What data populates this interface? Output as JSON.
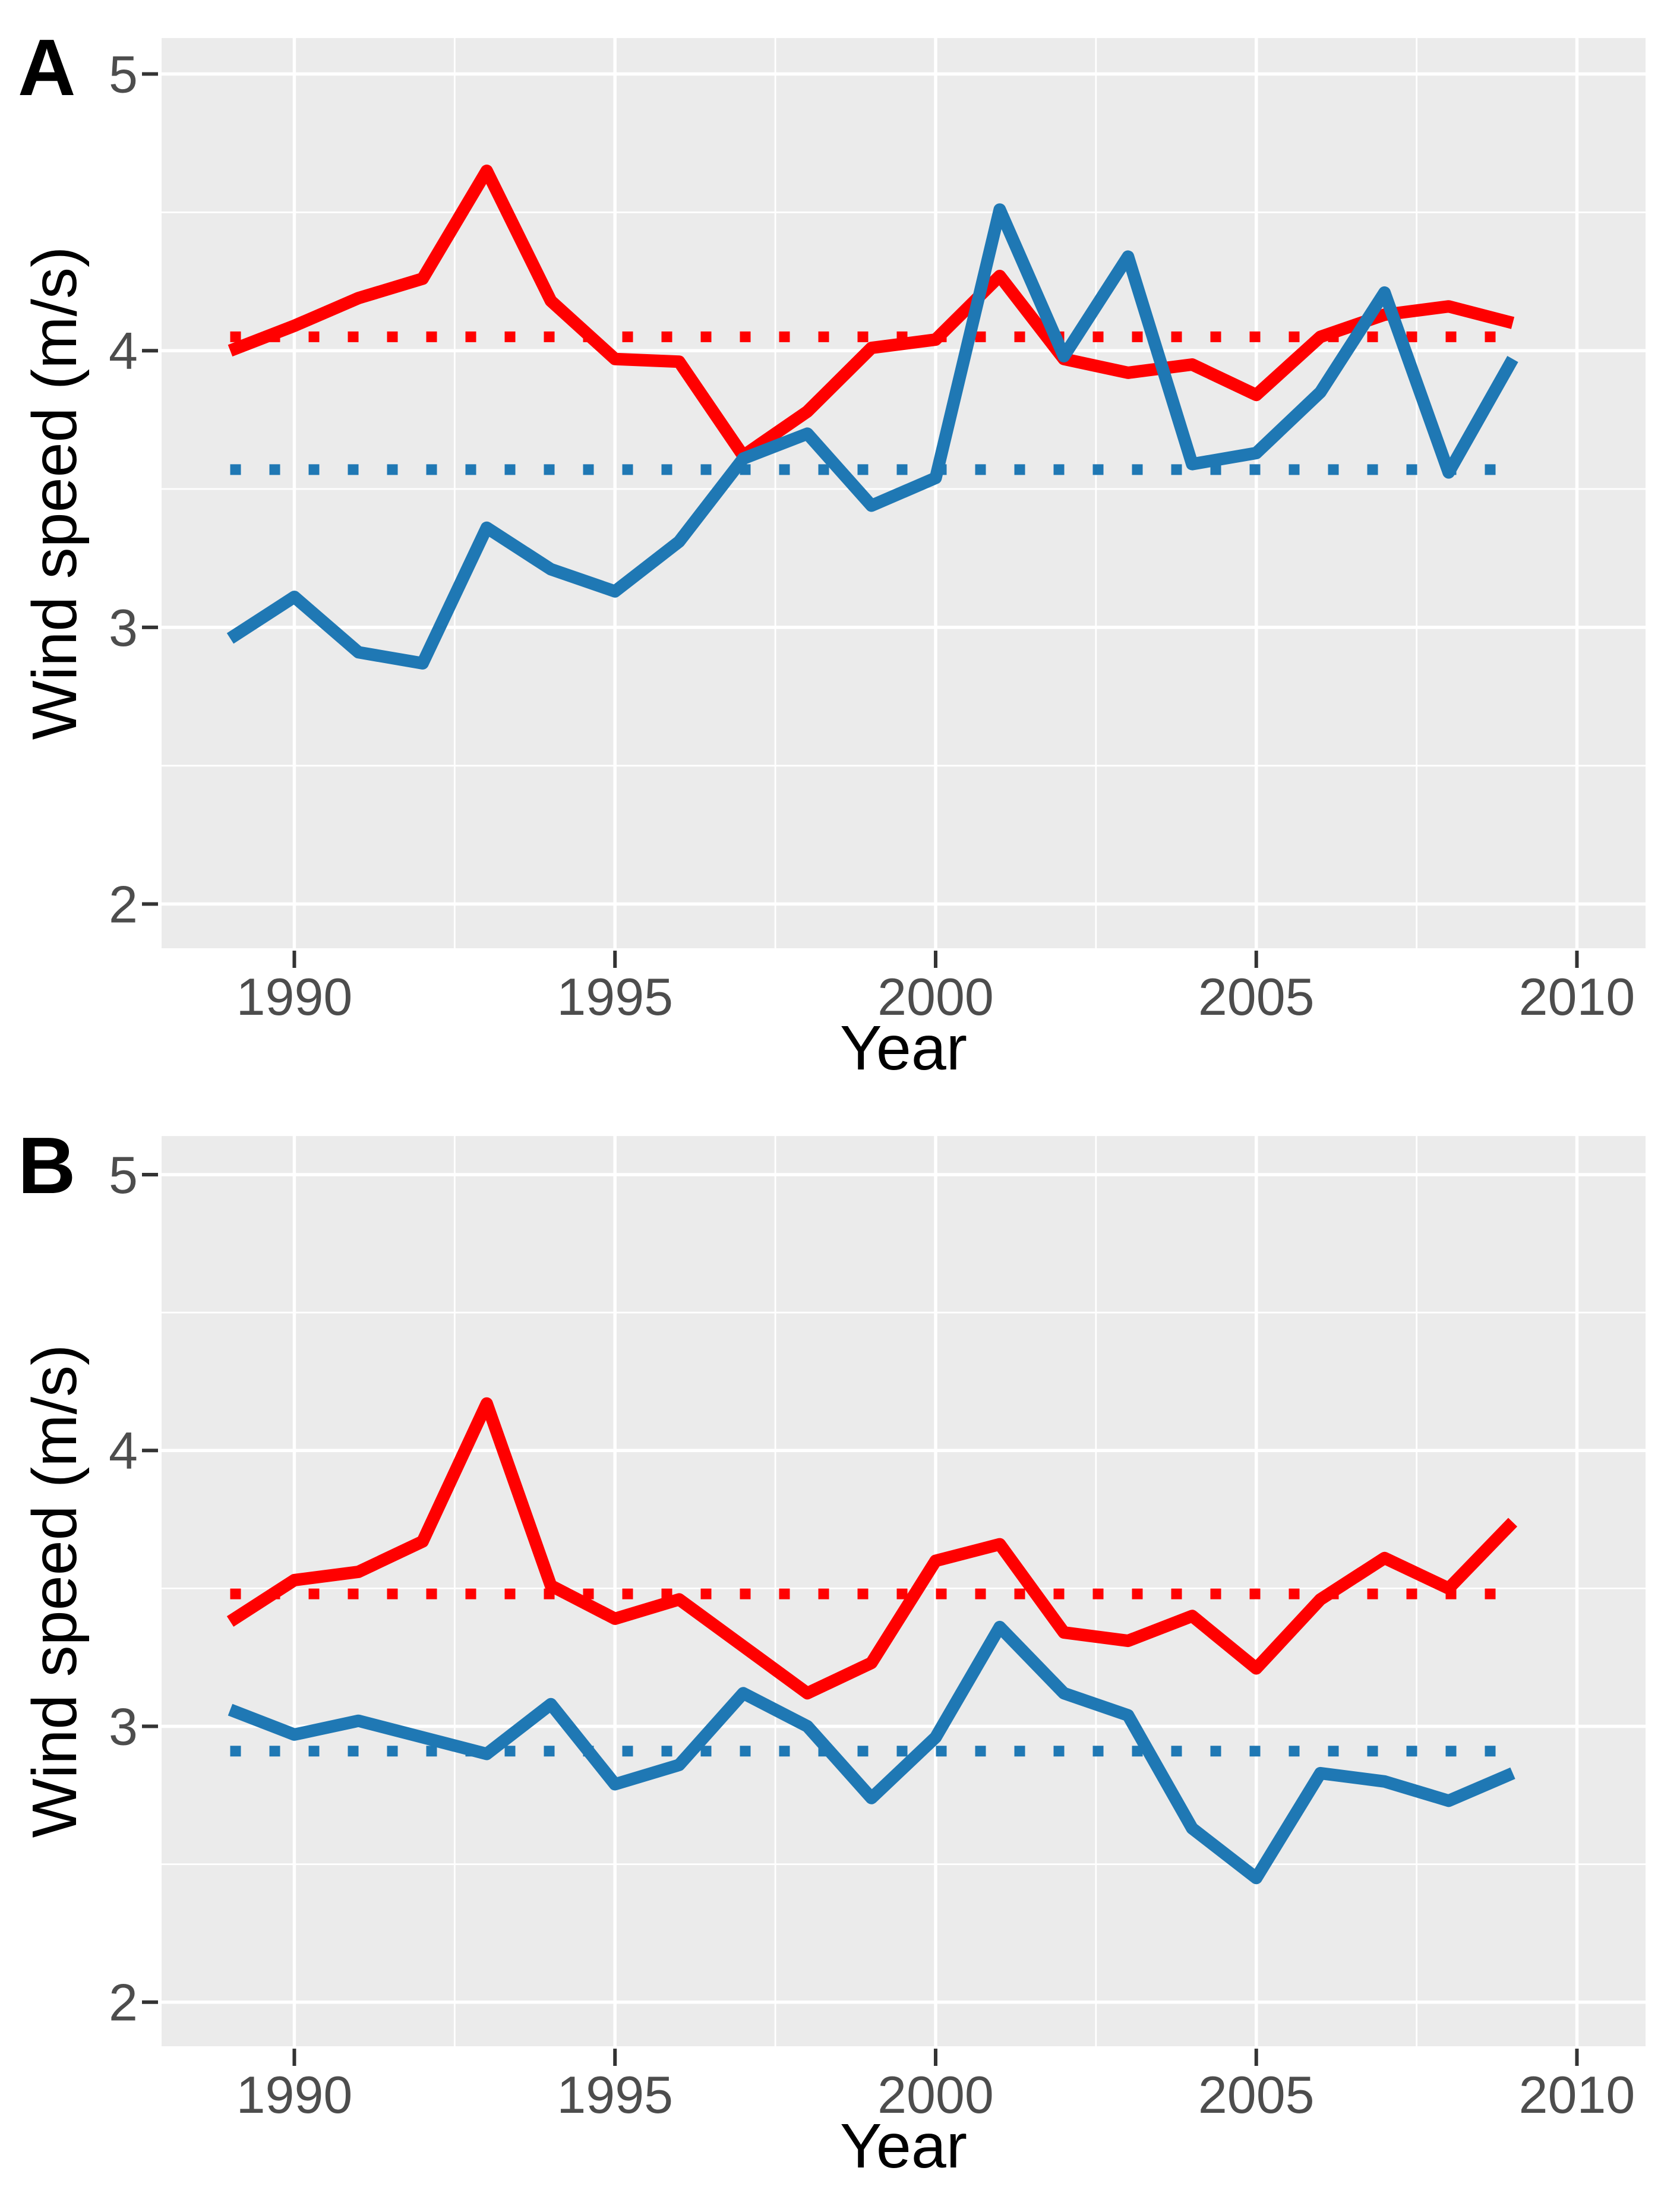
{
  "page": {
    "background": "#FFFFFF",
    "panel_background": "#EBEBEB",
    "grid_color": "#FFFFFF",
    "tick_color": "#333333",
    "tick_label_color": "#4D4D4D",
    "red_accent": "#FF0000",
    "blue_accent": "#1F78B4"
  },
  "chart_data": [
    {
      "type": "line",
      "panel_label": "A",
      "xlabel": "Year",
      "ylabel": "Wind speed (m/s)",
      "legend": "none",
      "grid": true,
      "panel_bg": "#EBEBEB",
      "xlim": [
        1987.93,
        2011.07
      ],
      "ylim": [
        1.84,
        5.13
      ],
      "x_ticks": [
        1990,
        1995,
        2000,
        2005,
        2010
      ],
      "x_tick_labels": [
        "1990",
        "1995",
        "2000",
        "2005",
        "2010"
      ],
      "x_minor_ticks": [
        1992.5,
        1997.5,
        2002.5,
        2007.5
      ],
      "y_ticks": [
        2,
        3,
        4,
        5
      ],
      "y_tick_labels": [
        "2",
        "3",
        "4",
        "5"
      ],
      "y_minor_ticks": [
        2.5,
        3.5,
        4.5
      ],
      "x": [
        1989,
        1990,
        1991,
        1992,
        1993,
        1994,
        1995,
        1996,
        1997,
        1998,
        1999,
        2000,
        2001,
        2002,
        2003,
        2004,
        2005,
        2006,
        2007,
        2008,
        2009
      ],
      "series": [
        {
          "name": "red-series",
          "color": "#FF0000",
          "style": "solid",
          "values": [
            4.0,
            4.09,
            4.19,
            4.26,
            4.65,
            4.18,
            3.97,
            3.96,
            3.62,
            3.78,
            4.01,
            4.04,
            4.27,
            3.97,
            3.92,
            3.95,
            3.84,
            4.05,
            4.13,
            4.16,
            4.1
          ]
        },
        {
          "name": "blue-series",
          "color": "#1F78B4",
          "style": "solid",
          "values": [
            2.96,
            3.11,
            2.91,
            2.87,
            3.36,
            3.21,
            3.13,
            3.31,
            3.61,
            3.7,
            3.44,
            3.54,
            4.51,
            3.98,
            4.34,
            3.59,
            3.63,
            3.85,
            4.21,
            3.56,
            3.97
          ]
        },
        {
          "name": "red-mean-line",
          "color": "#FF0000",
          "style": "dotted",
          "value": 4.05
        },
        {
          "name": "blue-mean-line",
          "color": "#1F78B4",
          "style": "dotted",
          "value": 3.57
        }
      ]
    },
    {
      "type": "line",
      "panel_label": "B",
      "xlabel": "Year",
      "ylabel": "Wind speed (m/s)",
      "legend": "none",
      "grid": true,
      "panel_bg": "#EBEBEB",
      "xlim": [
        1987.93,
        2011.07
      ],
      "ylim": [
        1.84,
        5.14
      ],
      "x_ticks": [
        1990,
        1995,
        2000,
        2005,
        2010
      ],
      "x_tick_labels": [
        "1990",
        "1995",
        "2000",
        "2005",
        "2010"
      ],
      "x_minor_ticks": [
        1992.5,
        1997.5,
        2002.5,
        2007.5
      ],
      "y_ticks": [
        2,
        3,
        4,
        5
      ],
      "y_tick_labels": [
        "2",
        "3",
        "4",
        "5"
      ],
      "y_minor_ticks": [
        2.5,
        3.5,
        4.5
      ],
      "x": [
        1989,
        1990,
        1991,
        1992,
        1993,
        1994,
        1995,
        1996,
        1997,
        1998,
        1999,
        2000,
        2001,
        2002,
        2003,
        2004,
        2005,
        2006,
        2007,
        2008,
        2009
      ],
      "series": [
        {
          "name": "red-series",
          "color": "#FF0000",
          "style": "solid",
          "values": [
            3.38,
            3.53,
            3.56,
            3.67,
            4.17,
            3.51,
            3.39,
            3.46,
            3.29,
            3.12,
            3.23,
            3.6,
            3.66,
            3.34,
            3.31,
            3.4,
            3.21,
            3.46,
            3.61,
            3.5,
            3.74
          ]
        },
        {
          "name": "blue-series",
          "color": "#1F78B4",
          "style": "solid",
          "values": [
            3.06,
            2.97,
            3.02,
            2.96,
            2.9,
            3.08,
            2.79,
            2.86,
            3.12,
            3.0,
            2.74,
            2.96,
            3.36,
            3.12,
            3.04,
            2.63,
            2.45,
            2.83,
            2.8,
            2.73,
            2.83
          ]
        },
        {
          "name": "red-mean-line",
          "color": "#FF0000",
          "style": "dotted",
          "value": 3.48
        },
        {
          "name": "blue-mean-line",
          "color": "#1F78B4",
          "style": "dotted",
          "value": 2.91
        }
      ]
    }
  ]
}
